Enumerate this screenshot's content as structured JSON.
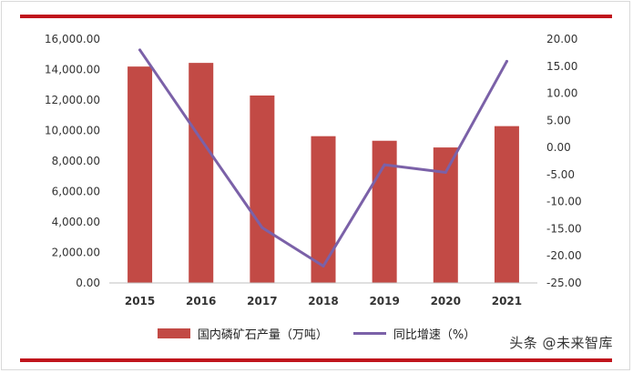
{
  "chart_data": {
    "type": "bar",
    "categories": [
      "2015",
      "2016",
      "2017",
      "2018",
      "2019",
      "2020",
      "2021"
    ],
    "series": [
      {
        "name": "国内磷矿石产量（万吨）",
        "type": "bar",
        "axis": "left",
        "color": "#c24a45",
        "values": [
          14200,
          14440,
          12300,
          9630,
          9330,
          8890,
          10290
        ]
      },
      {
        "name": "同比增速（%）",
        "type": "line",
        "axis": "right",
        "color": "#7b61a8",
        "values": [
          18.0,
          1.5,
          -14.8,
          -21.9,
          -3.2,
          -4.6,
          15.9
        ]
      }
    ],
    "y_left": {
      "min": 0,
      "max": 16000,
      "step": 2000,
      "ticks": [
        "0.00",
        "2,000.00",
        "4,000.00",
        "6,000.00",
        "8,000.00",
        "10,000.00",
        "12,000.00",
        "14,000.00",
        "16,000.00"
      ]
    },
    "y_right": {
      "min": -25,
      "max": 20,
      "step": 5,
      "ticks": [
        "-25.00",
        "-20.00",
        "-15.00",
        "-10.00",
        "-5.00",
        "0.00",
        "5.00",
        "10.00",
        "15.00",
        "20.00"
      ]
    },
    "grid": false,
    "legend_position": "bottom"
  },
  "legend": {
    "bar_label": "国内磷矿石产量（万吨）",
    "line_label": "同比增速（%）"
  },
  "watermark": "头条 @未来智库",
  "colors": {
    "accent_rule": "#c0141c",
    "bar": "#c24a45",
    "line": "#7b61a8"
  }
}
